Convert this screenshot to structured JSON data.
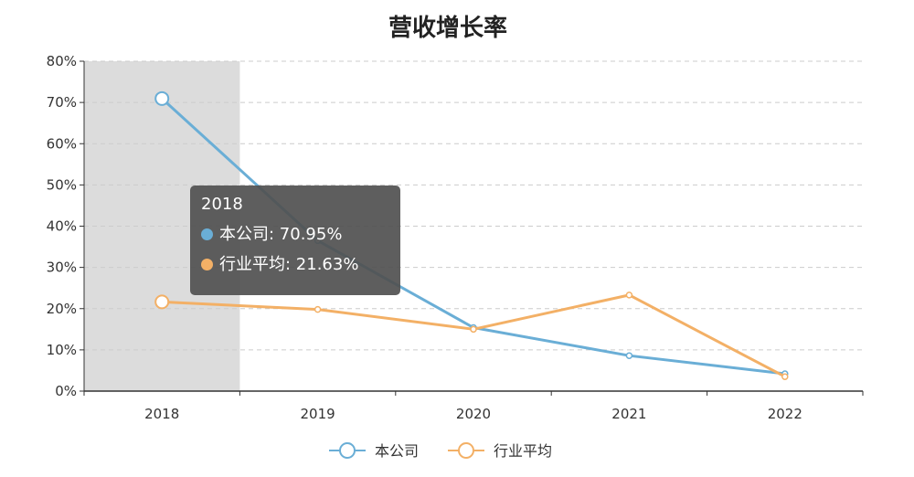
{
  "colors": {
    "company": "#6aaed6",
    "industry": "#f3b066"
  },
  "chart_data": {
    "type": "line",
    "title": "营收增长率",
    "categories": [
      "2018",
      "2019",
      "2020",
      "2021",
      "2022"
    ],
    "yticks": [
      "0%",
      "10%",
      "20%",
      "30%",
      "40%",
      "50%",
      "60%",
      "70%",
      "80%"
    ],
    "ylim": [
      0,
      80
    ],
    "grid": true,
    "legend_position": "bottom",
    "highlighted_category": "2018",
    "series": [
      {
        "name": "本公司",
        "values": [
          70.95,
          36.5,
          15.4,
          8.6,
          4.2
        ]
      },
      {
        "name": "行业平均",
        "values": [
          21.63,
          19.8,
          15.0,
          23.3,
          3.5
        ]
      }
    ]
  },
  "tooltip": {
    "title": "2018",
    "rows": [
      {
        "label": "本公司: 70.95%"
      },
      {
        "label": "行业平均: 21.63%"
      }
    ]
  }
}
